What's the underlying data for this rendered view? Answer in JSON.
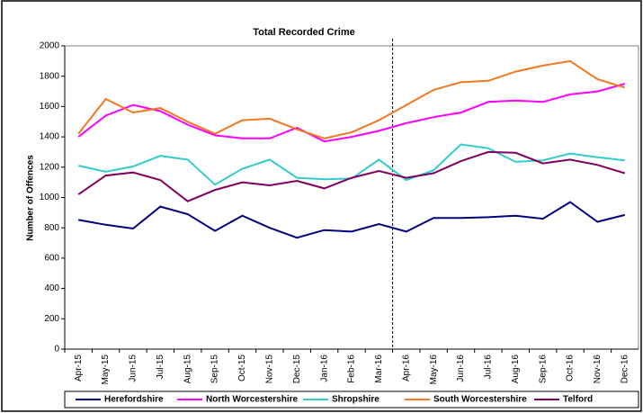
{
  "chart_data": {
    "type": "line",
    "title": "Total Recorded Crime",
    "y_label": "Number of Offences",
    "categories": [
      "Apr-15",
      "May-15",
      "Jun-15",
      "Jul-15",
      "Aug-15",
      "Sep-15",
      "Oct-15",
      "Nov-15",
      "Dec-15",
      "Jan-16",
      "Feb-16",
      "Mar-16",
      "Apr-16",
      "May-16",
      "Jun-16",
      "Jul-16",
      "Aug-16",
      "Sep-16",
      "Oct-16",
      "Nov-16",
      "Dec-16"
    ],
    "series": [
      {
        "name": "Herefordshire",
        "color": "#000080",
        "values": [
          852,
          820,
          795,
          940,
          890,
          780,
          880,
          800,
          735,
          785,
          775,
          825,
          775,
          865,
          865,
          870,
          880,
          860,
          970,
          840,
          885
        ]
      },
      {
        "name": "North Worcestershire",
        "color": "#ff00ff",
        "values": [
          1400,
          1540,
          1610,
          1570,
          1480,
          1410,
          1390,
          1390,
          1460,
          1370,
          1400,
          1440,
          1490,
          1530,
          1560,
          1630,
          1640,
          1630,
          1680,
          1700,
          1750
        ]
      },
      {
        "name": "Shropshire",
        "color": "#33cccc",
        "values": [
          1210,
          1170,
          1205,
          1275,
          1250,
          1085,
          1190,
          1250,
          1130,
          1120,
          1125,
          1250,
          1115,
          1180,
          1350,
          1325,
          1235,
          1245,
          1290,
          1265,
          1245
        ]
      },
      {
        "name": "South Worcestershire",
        "color": "#f07820",
        "values": [
          1420,
          1650,
          1560,
          1590,
          1500,
          1420,
          1510,
          1520,
          1450,
          1390,
          1430,
          1510,
          1610,
          1710,
          1760,
          1770,
          1830,
          1870,
          1900,
          1780,
          1725
        ]
      },
      {
        "name": "Telford",
        "color": "#800060",
        "values": [
          1020,
          1145,
          1165,
          1115,
          975,
          1050,
          1100,
          1080,
          1110,
          1060,
          1130,
          1175,
          1130,
          1160,
          1240,
          1300,
          1295,
          1225,
          1250,
          1215,
          1160
        ]
      }
    ],
    "ylim": [
      0,
      2000
    ],
    "yticks": [
      0,
      200,
      400,
      600,
      800,
      1000,
      1200,
      1400,
      1600,
      1800,
      2000
    ],
    "grid": false
  }
}
